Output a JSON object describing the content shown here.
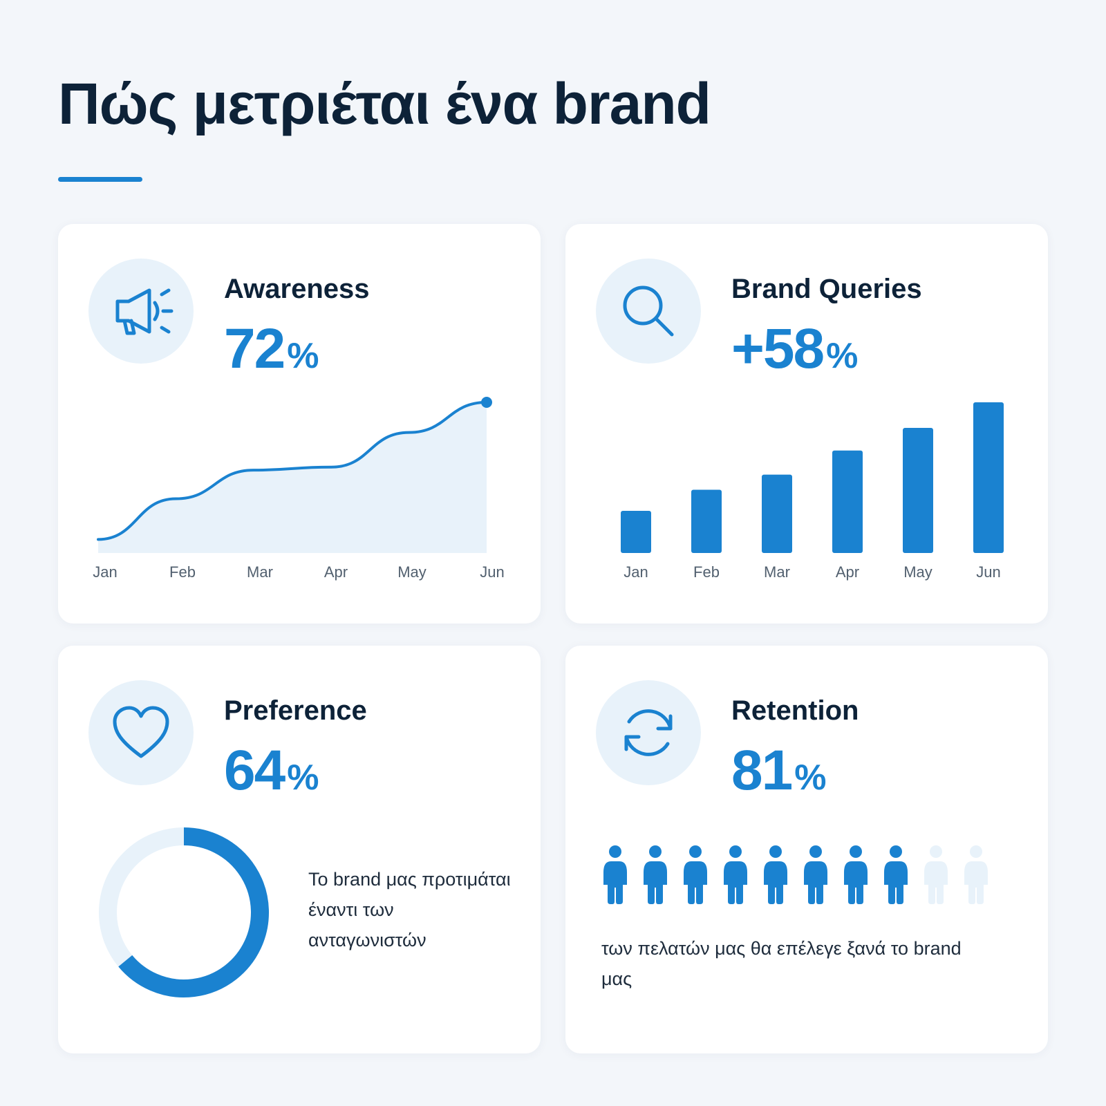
{
  "page": {
    "title": "Πώς μετριέται ένα brand"
  },
  "cards": {
    "awareness": {
      "title": "Awareness",
      "value": "72",
      "unit": "%",
      "icon": "megaphone-icon"
    },
    "queries": {
      "title": "Brand Queries",
      "value": "+58",
      "unit": "%",
      "icon": "search-icon"
    },
    "preference": {
      "title": "Preference",
      "value": "64",
      "unit": "%",
      "icon": "heart-icon",
      "caption": "Το brand μας προτιμάται έναντι των ανταγωνιστών"
    },
    "retention": {
      "title": "Retention",
      "value": "81",
      "unit": "%",
      "icon": "refresh-icon",
      "caption": "των πελατών μας θα επέλεγε ξανά το brand μας"
    }
  },
  "colors": {
    "accent": "#1a82d0",
    "light": "#e8f2fa",
    "dark": "#0d2238",
    "background": "#f3f6fa"
  },
  "chart_data": [
    {
      "type": "area",
      "categories": [
        "Jan",
        "Feb",
        "Mar",
        "Apr",
        "May",
        "Jun"
      ],
      "values": [
        9,
        36,
        55,
        57,
        80,
        100
      ],
      "ylim": [
        0,
        100
      ],
      "grid": false
    },
    {
      "type": "bar",
      "categories": [
        "Jan",
        "Feb",
        "Mar",
        "Apr",
        "May",
        "Jun"
      ],
      "values": [
        28,
        42,
        52,
        68,
        83,
        100
      ],
      "ylim": [
        0,
        100
      ],
      "grid": false
    },
    {
      "type": "pie",
      "values": [
        64,
        36
      ],
      "colors": [
        "#1a82d0",
        "#e8f2fa"
      ]
    },
    {
      "type": "bar",
      "filled": 8,
      "total": 10
    }
  ]
}
